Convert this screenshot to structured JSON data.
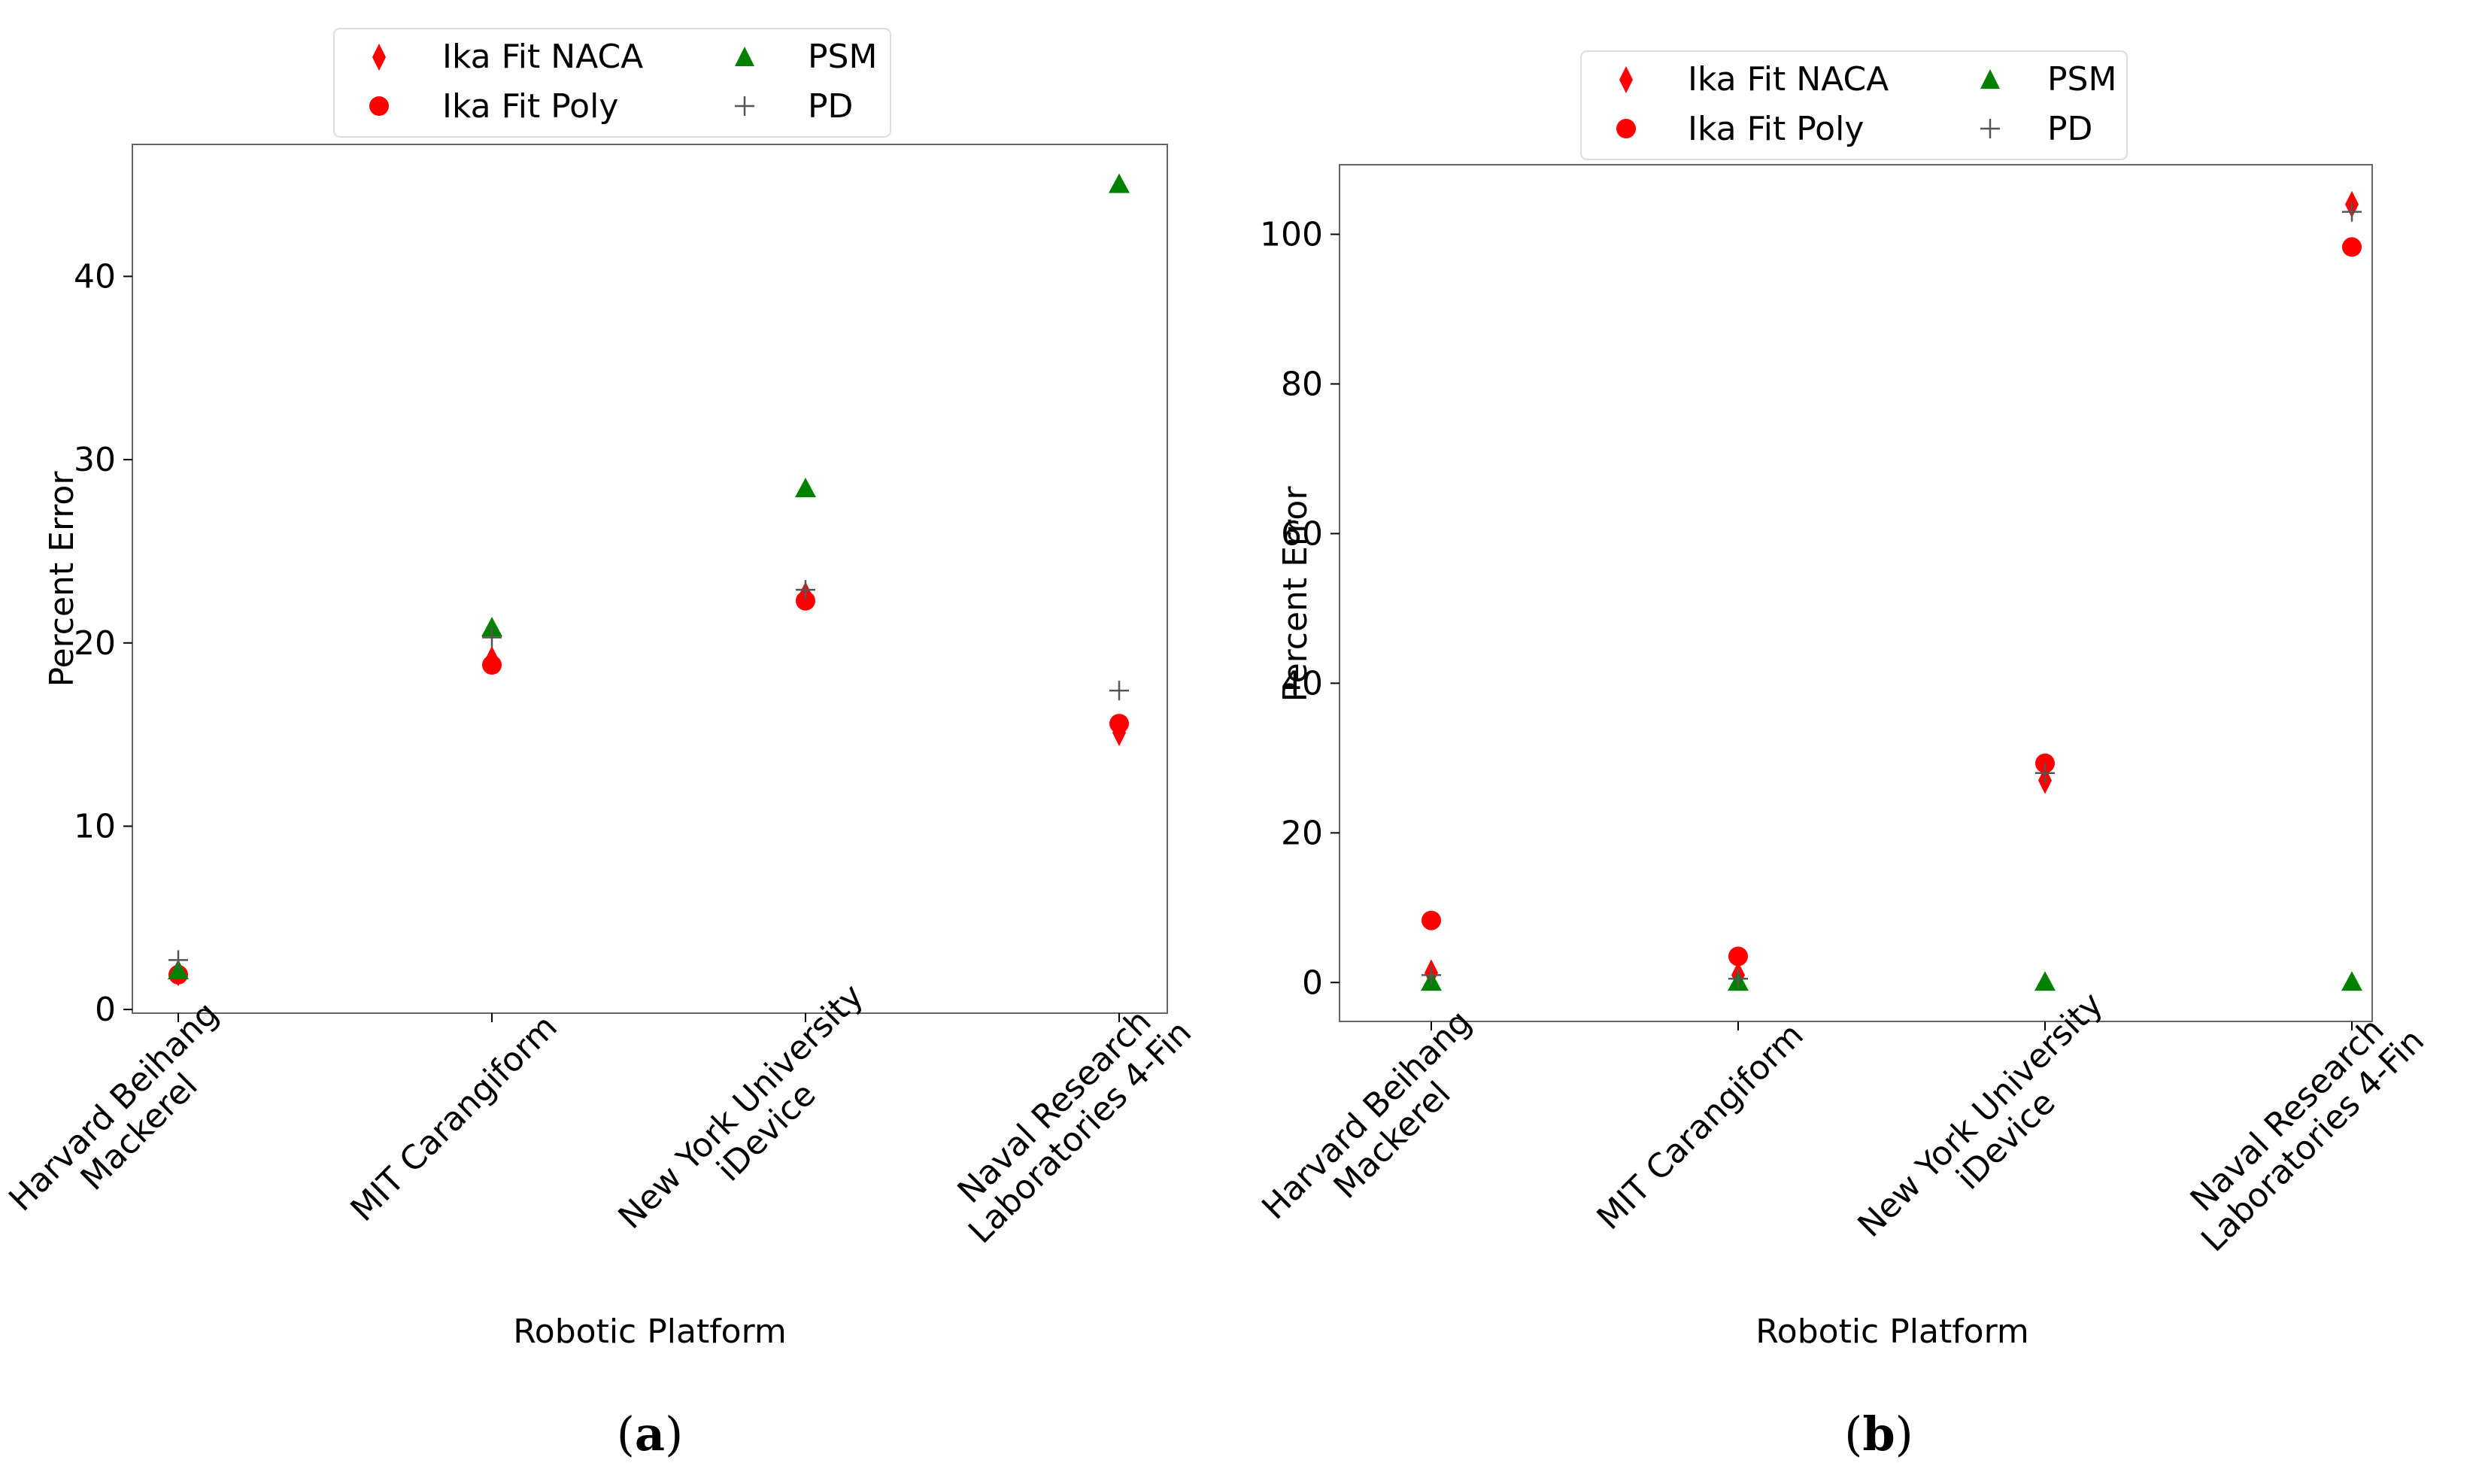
{
  "figure": {
    "panel_captions": [
      {
        "open": "(",
        "letter": "a",
        "close": ")"
      },
      {
        "open": "(",
        "letter": "b",
        "close": ")"
      }
    ]
  },
  "colors": {
    "naca": "#ff0000",
    "poly": "#ff0000",
    "psm": "#008000",
    "pd": "#555555"
  },
  "legend": {
    "entries": [
      {
        "key": "naca",
        "label": "Ika Fit NACA",
        "marker": "diamond"
      },
      {
        "key": "poly",
        "label": "Ika Fit Poly",
        "marker": "circle"
      },
      {
        "key": "psm",
        "label": "PSM",
        "marker": "triangle"
      },
      {
        "key": "pd",
        "label": "PD",
        "marker": "plus"
      }
    ]
  },
  "chart_data": [
    {
      "type": "scatter",
      "panel": "a",
      "xlabel": "Robotic Platform",
      "ylabel": "Percent Error",
      "categories": [
        [
          "Harvard Beihang",
          "Mackerel"
        ],
        [
          "MIT Carangiform"
        ],
        [
          "New York University",
          "iDevice"
        ],
        [
          "Naval Research",
          "Laboratories 4-Fin"
        ]
      ],
      "ylim": [
        -0.2,
        47.2
      ],
      "yticks": [
        0,
        10,
        20,
        30,
        40
      ],
      "legend_position": "top-center",
      "series": [
        {
          "key": "naca",
          "name": "Ika Fit NACA",
          "values": [
            2.0,
            19.1,
            22.6,
            15.1
          ]
        },
        {
          "key": "poly",
          "name": "Ika Fit Poly",
          "values": [
            1.9,
            18.8,
            22.3,
            15.6
          ]
        },
        {
          "key": "psm",
          "name": "PSM",
          "values": [
            2.1,
            20.8,
            28.4,
            45.0
          ]
        },
        {
          "key": "pd",
          "name": "PD",
          "values": [
            2.7,
            20.3,
            22.9,
            17.4
          ]
        }
      ]
    },
    {
      "type": "scatter",
      "panel": "b",
      "xlabel": "Robotic Platform",
      "ylabel": "Percent Error",
      "categories": [
        [
          "Harvard Beihang",
          "Mackerel"
        ],
        [
          "MIT Carangiform"
        ],
        [
          "New York University",
          "iDevice"
        ],
        [
          "Naval Research",
          "Laboratories 4-Fin"
        ]
      ],
      "ylim": [
        -5.2,
        109.3
      ],
      "yticks": [
        0,
        20,
        40,
        60,
        80,
        100
      ],
      "legend_position": "top-center",
      "series": [
        {
          "key": "naca",
          "name": "Ika Fit NACA",
          "values": [
            1.3,
            1.0,
            27.0,
            104.0
          ]
        },
        {
          "key": "poly",
          "name": "Ika Fit Poly",
          "values": [
            8.3,
            3.5,
            29.3,
            98.3
          ]
        },
        {
          "key": "psm",
          "name": "PSM",
          "values": [
            0.0,
            0.0,
            0.0,
            0.0
          ]
        },
        {
          "key": "pd",
          "name": "PD",
          "values": [
            1.0,
            0.5,
            28.0,
            103.0
          ]
        }
      ]
    }
  ]
}
